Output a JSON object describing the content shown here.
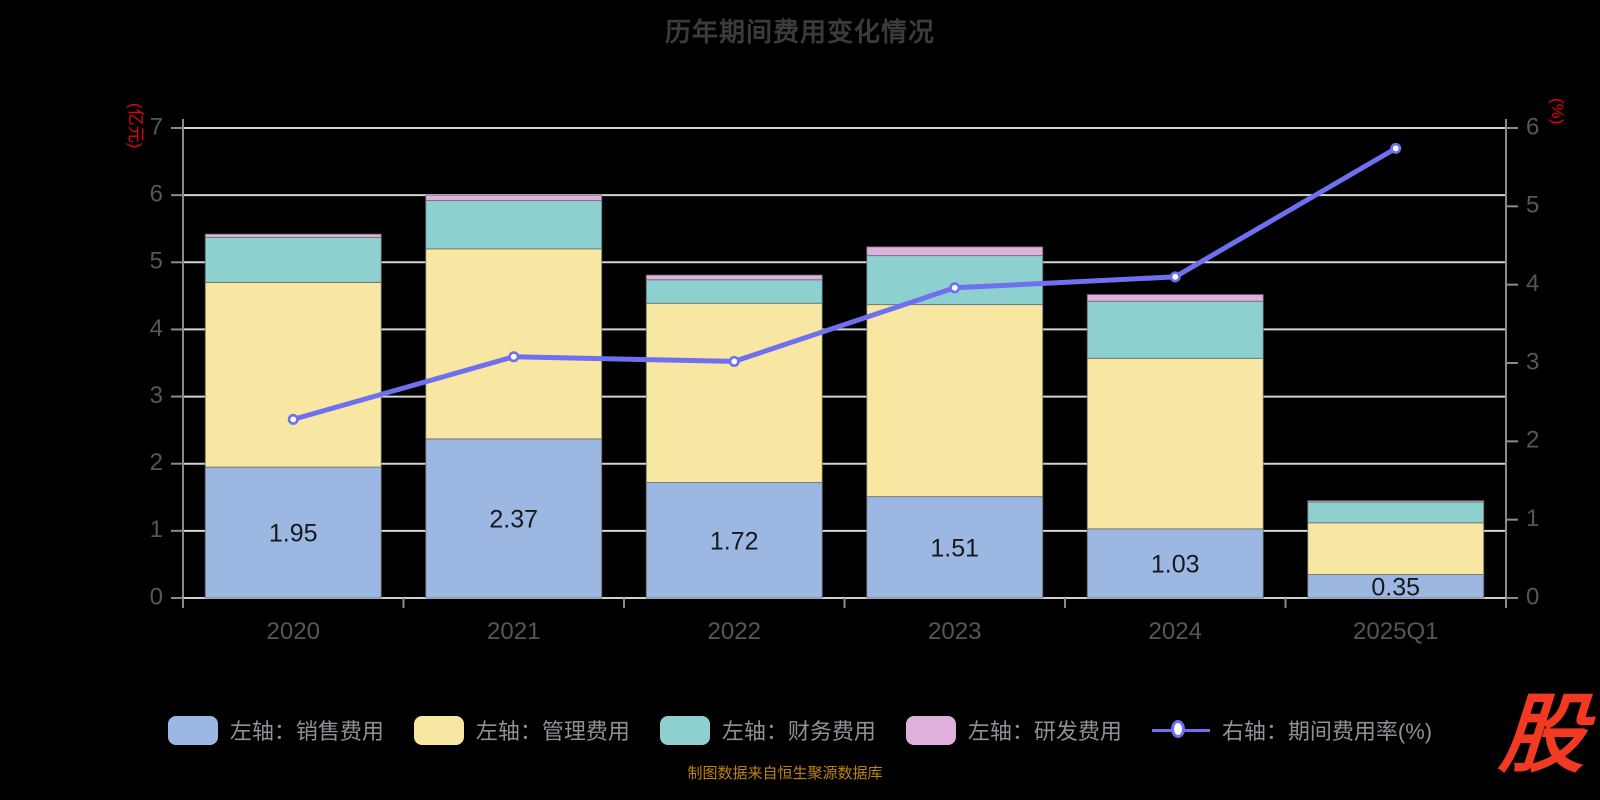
{
  "ui": {
    "title": "历年期间费用变化情况",
    "source_note": "制图数据来自恒生聚源数据库",
    "logo_text": "股"
  },
  "chart_data": {
    "type": "bar",
    "subtype": "stacked-bar-with-line",
    "title": "历年期间费用变化情况",
    "categories": [
      "2020",
      "2021",
      "2022",
      "2023",
      "2024",
      "2025Q1"
    ],
    "series": [
      {
        "name": "左轴：销售费用",
        "type": "bar",
        "stack": true,
        "axis": "left",
        "color": "#9cb8e2",
        "values": [
          1.95,
          2.37,
          1.72,
          1.51,
          1.03,
          0.35
        ],
        "show_labels": true
      },
      {
        "name": "左轴：管理费用",
        "type": "bar",
        "stack": true,
        "axis": "left",
        "color": "#f8e7a2",
        "values": [
          2.75,
          2.83,
          2.67,
          2.86,
          2.54,
          0.77
        ],
        "show_labels": false
      },
      {
        "name": "左轴：财务费用",
        "type": "bar",
        "stack": true,
        "axis": "left",
        "color": "#8ed0d0",
        "values": [
          0.67,
          0.72,
          0.35,
          0.73,
          0.85,
          0.31
        ],
        "show_labels": false
      },
      {
        "name": "左轴：研发费用",
        "type": "bar",
        "stack": true,
        "axis": "left",
        "color": "#dfb0dc",
        "values": [
          0.05,
          0.08,
          0.07,
          0.13,
          0.1,
          0.02
        ],
        "show_labels": false
      },
      {
        "name": "右轴：期间费用率(%)",
        "type": "line",
        "axis": "right",
        "color": "#6e70f0",
        "values": [
          2.28,
          3.08,
          3.02,
          3.96,
          4.1,
          5.74
        ],
        "show_labels": false
      }
    ],
    "bar_labels": [
      "1.95",
      "2.37",
      "1.72",
      "1.51",
      "1.03",
      "0.35"
    ],
    "left_axis": {
      "name": "(亿元)",
      "min": 0,
      "max": 7,
      "tick_step": 1,
      "name_color": "#ee0000"
    },
    "right_axis": {
      "name": "(%)",
      "min": 0,
      "max": 6,
      "tick_step": 1,
      "name_color": "#ee0000"
    },
    "grid": true,
    "legend_position": "bottom",
    "colors": {
      "background": "#000000",
      "gridline": "#d4d4d4",
      "axis_line": "#8a8a8a",
      "bottom_axis_line": "#cfcfcf",
      "tick_text": "#53575c",
      "bar_label_text": "#17181a",
      "title_text": "#3b3b3d",
      "legend_text": "#8d9196"
    }
  }
}
